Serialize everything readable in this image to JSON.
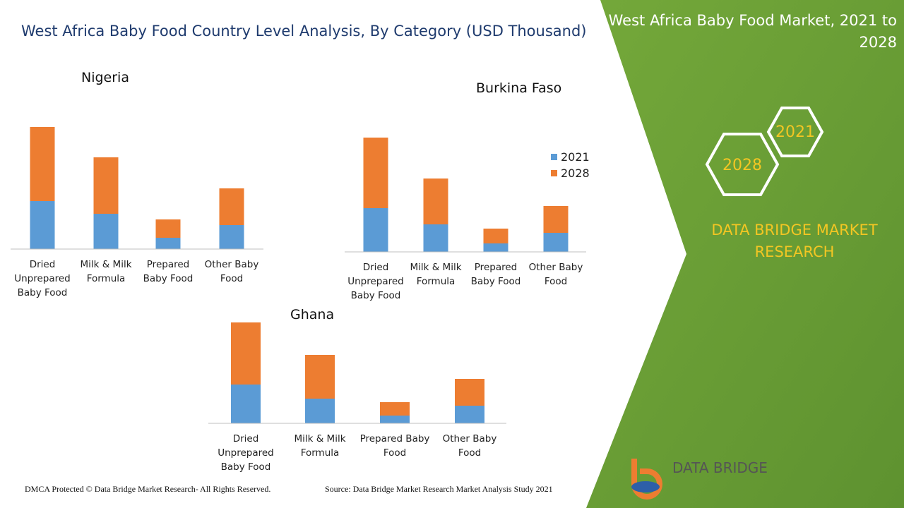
{
  "header": {
    "title": "West Africa Baby Food Country Level Analysis, By Category (USD Thousand)"
  },
  "chart_data": [
    {
      "type": "bar",
      "stacked": true,
      "title": "Nigeria",
      "categories": [
        "Dried Unprepared Baby Food",
        "Milk & Milk Formula",
        "Prepared Baby Food",
        "Other Baby Food"
      ],
      "series": [
        {
          "color": "#5b9bd5",
          "values": [
            68,
            50,
            16,
            34
          ]
        },
        {
          "color": "#ed7d31",
          "values": [
            105,
            80,
            26,
            52
          ]
        }
      ]
    },
    {
      "type": "bar",
      "stacked": true,
      "title": "Burkina Faso",
      "legend": "right",
      "categories": [
        "Dried Unprepared Baby Food",
        "Milk & Milk Formula",
        "Prepared Baby Food",
        "Other Baby Food"
      ],
      "series": [
        {
          "name": "2021",
          "color": "#5b9bd5",
          "values": [
            62,
            39,
            12,
            27
          ]
        },
        {
          "name": "2028",
          "color": "#ed7d31",
          "values": [
            100,
            65,
            21,
            38
          ]
        }
      ]
    },
    {
      "type": "bar",
      "stacked": true,
      "title": "Ghana",
      "categories": [
        "Dried Unprepared Baby Food",
        "Milk & Milk Formula",
        "Prepared Baby Food",
        "Other Baby Food"
      ],
      "series": [
        {
          "color": "#5b9bd5",
          "values": [
            55,
            35,
            11,
            25
          ]
        },
        {
          "color": "#ed7d31",
          "values": [
            88,
            62,
            19,
            38
          ]
        }
      ]
    }
  ],
  "side_panel": {
    "title": "West Africa Baby Food Market, 2021 to 2028",
    "badges": [
      "2021",
      "2028"
    ],
    "brand": "DATA BRIDGE MARKET RESEARCH"
  },
  "logo": {
    "text": "DATA BRIDGE"
  },
  "footer": {
    "copyright": "DMCA Protected © Data Bridge Market Research- All Rights Reserved.",
    "source": "Source: Data Bridge Market Research Market Analysis Study 2021"
  }
}
